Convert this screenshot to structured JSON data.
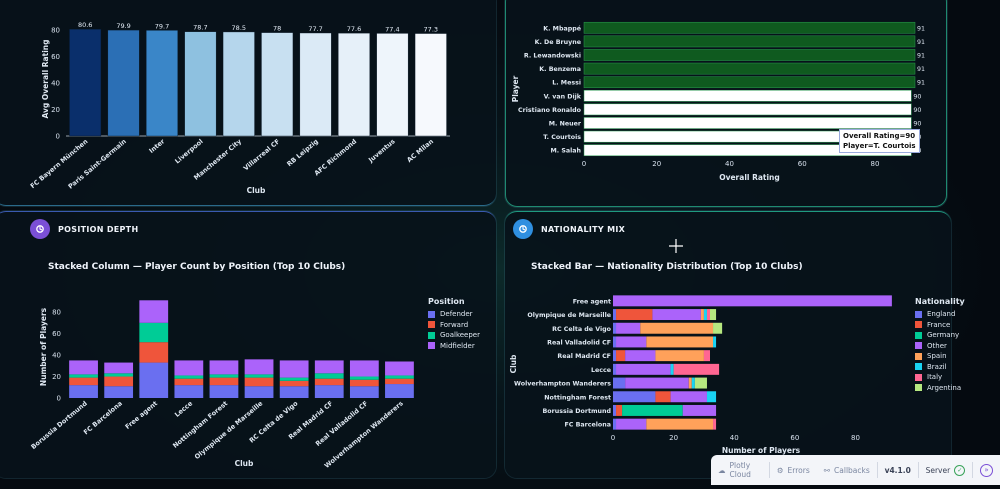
{
  "top_left": {
    "chart_data": {
      "type": "bar",
      "xlabel": "Club",
      "ylabel": "Avg Overall Rating",
      "ylim": [
        0,
        86
      ],
      "yticks": [
        0,
        20,
        40,
        60,
        80
      ],
      "categories": [
        "FC Bayern München",
        "Paris Saint-Germain",
        "Inter",
        "Liverpool",
        "Manchester City",
        "Villarreal CF",
        "RB Leipzig",
        "AFC Richmond",
        "Juventus",
        "AC Milan"
      ],
      "values": [
        80.6,
        79.9,
        79.7,
        78.7,
        78.5,
        78,
        77.7,
        77.6,
        77.4,
        77.3
      ],
      "value_labels": [
        "80.6",
        "79.9",
        "79.7",
        "78.7",
        "78.5",
        "78",
        "77.7",
        "77.6",
        "77.4",
        "77.3"
      ],
      "colors": [
        "#0a2f6b",
        "#2b6fb5",
        "#3a86c8",
        "#8ec1e0",
        "#b5d6ec",
        "#c8e0f1",
        "#dbeaf6",
        "#e6f0f9",
        "#eef5fb",
        "#f6f9fd"
      ]
    }
  },
  "top_right": {
    "chart_data": {
      "type": "bar",
      "orientation": "horizontal",
      "xlabel": "Overall Rating",
      "ylabel": "Player",
      "xlim": [
        0,
        91
      ],
      "xticks": [
        0,
        20,
        40,
        60,
        80
      ],
      "categories": [
        "K. Mbappé",
        "K. De Bruyne",
        "R. Lewandowski",
        "K. Benzema",
        "L. Messi",
        "V. van Dijk",
        "Cristiano Ronaldo",
        "M. Neuer",
        "T. Courtois",
        "M. Salah"
      ],
      "values": [
        91,
        91,
        91,
        91,
        91,
        90,
        90,
        90,
        90,
        90
      ],
      "value_labels": [
        "91",
        "91",
        "91",
        "91",
        "91",
        "90",
        "90",
        "90",
        "90",
        "90"
      ],
      "colors": [
        "#0f5a1f",
        "#0f5a1f",
        "#0f5a1f",
        "#0f5a1f",
        "#0f5a1f",
        "#ffffff",
        "#ffffff",
        "#ffffff",
        "#ffffff",
        "#ffffff"
      ]
    },
    "tooltip": {
      "line1": "Overall Rating=90",
      "line2": "Player=T. Courtois"
    }
  },
  "bottom_left": {
    "header": "POSITION DEPTH",
    "title": "Stacked Column — Player Count by Position (Top 10 Clubs)",
    "chart_data": {
      "type": "bar",
      "stacked": true,
      "xlabel": "Club",
      "ylabel": "Number of Players",
      "ylim": [
        0,
        95
      ],
      "yticks": [
        0,
        20,
        40,
        60,
        80
      ],
      "categories": [
        "Borussia Dortmund",
        "FC Barcelona",
        "Free agent",
        "Lecce",
        "Nottingham Forest",
        "Olympique de Marseille",
        "RC Celta de Vigo",
        "Real Madrid CF",
        "Real Valladolid CF",
        "Wolverhampton Wanderers"
      ],
      "series": [
        {
          "name": "Defender",
          "color": "#6a6ff0",
          "values": [
            12,
            11,
            33,
            12,
            12,
            11,
            11,
            12,
            11,
            13
          ]
        },
        {
          "name": "Forward",
          "color": "#ef553b",
          "values": [
            7,
            9,
            19,
            6,
            7,
            8,
            5,
            6,
            6,
            5
          ]
        },
        {
          "name": "Goalkeeper",
          "color": "#00cc96",
          "values": [
            3,
            3,
            18,
            3,
            3,
            3,
            3,
            5,
            3,
            3
          ]
        },
        {
          "name": "Midfielder",
          "color": "#ab63fa",
          "values": [
            13,
            10,
            21,
            14,
            13,
            14,
            16,
            12,
            15,
            13
          ]
        }
      ],
      "legend_title": "Position"
    }
  },
  "bottom_right": {
    "header": "NATIONALITY MIX",
    "title": "Stacked Bar — Nationality Distribution (Top 10 Clubs)",
    "chart_data": {
      "type": "bar",
      "orientation": "horizontal",
      "stacked": true,
      "xlabel": "Number of Players",
      "ylabel": "Club",
      "xlim": [
        0,
        96
      ],
      "xticks": [
        0,
        20,
        40,
        60,
        80
      ],
      "categories": [
        "Free agent",
        "Olympique de Marseille",
        "RC Celta de Vigo",
        "Real Valladolid CF",
        "Real Madrid CF",
        "Lecce",
        "Wolverhampton Wanderers",
        "Nottingham Forest",
        "Borussia Dortmund",
        "FC Barcelona"
      ],
      "series": [
        {
          "name": "England",
          "color": "#6a6ff0",
          "values": [
            0,
            1,
            1,
            1,
            1,
            1,
            4,
            14,
            1,
            1
          ]
        },
        {
          "name": "France",
          "color": "#ef553b",
          "values": [
            0,
            12,
            0,
            0,
            3,
            0,
            0,
            5,
            2,
            0
          ]
        },
        {
          "name": "Germany",
          "color": "#00cc96",
          "values": [
            0,
            0,
            0,
            0,
            0,
            0,
            0,
            0,
            20,
            0
          ]
        },
        {
          "name": "Other",
          "color": "#ab63fa",
          "values": [
            92,
            16,
            8,
            10,
            10,
            18,
            21,
            12,
            11,
            10
          ]
        },
        {
          "name": "Spain",
          "color": "#ffa15a",
          "values": [
            0,
            1,
            24,
            22,
            16,
            0,
            1,
            0,
            0,
            22
          ]
        },
        {
          "name": "Brazil",
          "color": "#19d3f3",
          "values": [
            0,
            1,
            0,
            1,
            0,
            1,
            1,
            3,
            0,
            0
          ]
        },
        {
          "name": "Italy",
          "color": "#ff6692",
          "values": [
            0,
            1,
            0,
            0,
            2,
            15,
            0,
            0,
            0,
            1
          ]
        },
        {
          "name": "Argentina",
          "color": "#b6e880",
          "values": [
            0,
            2,
            3,
            0,
            0,
            0,
            4,
            0,
            0,
            0
          ]
        }
      ],
      "legend_title": "Nationality"
    }
  },
  "footer": {
    "plotly_cloud": "Plotly Cloud",
    "errors": "Errors",
    "callbacks": "Callbacks",
    "version": "v4.1.0",
    "server": "Server"
  }
}
